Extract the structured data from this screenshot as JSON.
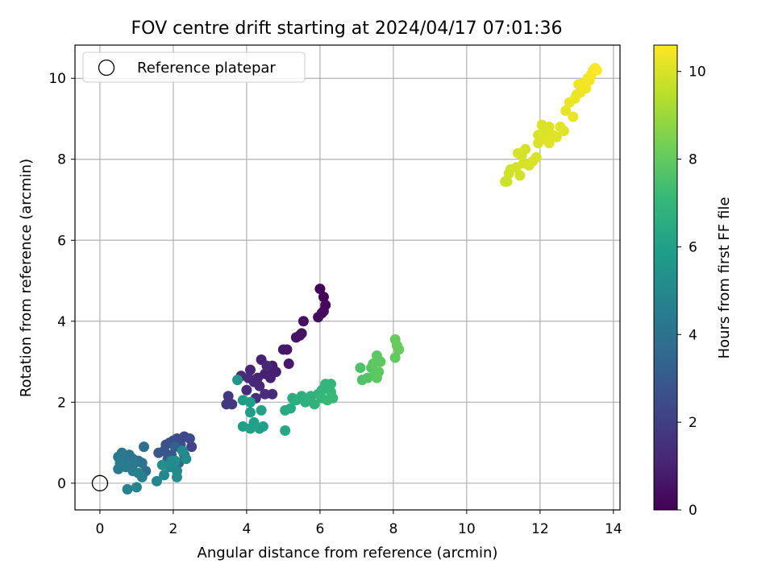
{
  "chart_data": {
    "type": "scatter",
    "title": "FOV centre drift starting at 2024/04/17 07:01:36",
    "xlabel": "Angular distance from reference (arcmin)",
    "ylabel": "Rotation from reference (arcmin)",
    "xlim": [
      -0.68,
      14.18
    ],
    "ylim": [
      -0.66,
      10.82
    ],
    "xticks": [
      0,
      2,
      4,
      6,
      8,
      10,
      12,
      14
    ],
    "yticks": [
      0,
      2,
      4,
      6,
      8,
      10
    ],
    "grid": true,
    "legend": {
      "placement": "top-left",
      "entries": [
        "Reference platepar"
      ]
    },
    "reference_point": {
      "x": 0,
      "y": 0,
      "label": "Reference platepar"
    },
    "colorbar": {
      "label": "Hours from first FF file",
      "colormap": "viridis",
      "range": [
        0,
        10.6
      ],
      "ticks": [
        0,
        2,
        4,
        6,
        8,
        10
      ]
    },
    "points": [
      {
        "x": 6.0,
        "y": 4.8,
        "t": 0.1
      },
      {
        "x": 6.1,
        "y": 4.6,
        "t": 0.15
      },
      {
        "x": 6.15,
        "y": 4.4,
        "t": 0.2
      },
      {
        "x": 6.05,
        "y": 4.2,
        "t": 0.25
      },
      {
        "x": 5.95,
        "y": 4.1,
        "t": 0.3
      },
      {
        "x": 6.1,
        "y": 4.25,
        "t": 0.28
      },
      {
        "x": 5.55,
        "y": 4.0,
        "t": 0.45
      },
      {
        "x": 5.5,
        "y": 3.7,
        "t": 0.5
      },
      {
        "x": 5.35,
        "y": 3.6,
        "t": 0.55
      },
      {
        "x": 5.45,
        "y": 3.65,
        "t": 0.52
      },
      {
        "x": 5.1,
        "y": 3.3,
        "t": 0.65
      },
      {
        "x": 5.0,
        "y": 3.3,
        "t": 0.7
      },
      {
        "x": 5.15,
        "y": 2.95,
        "t": 0.75
      },
      {
        "x": 4.7,
        "y": 2.9,
        "t": 0.85
      },
      {
        "x": 4.6,
        "y": 2.8,
        "t": 0.9
      },
      {
        "x": 4.4,
        "y": 3.05,
        "t": 0.95
      },
      {
        "x": 4.5,
        "y": 2.7,
        "t": 1.0
      },
      {
        "x": 4.3,
        "y": 2.6,
        "t": 1.05
      },
      {
        "x": 4.1,
        "y": 2.8,
        "t": 1.1
      },
      {
        "x": 4.65,
        "y": 2.6,
        "t": 1.0
      },
      {
        "x": 4.8,
        "y": 2.75,
        "t": 0.9
      },
      {
        "x": 4.35,
        "y": 2.4,
        "t": 1.15
      },
      {
        "x": 4.2,
        "y": 2.5,
        "t": 1.2
      },
      {
        "x": 4.0,
        "y": 2.3,
        "t": 1.3
      },
      {
        "x": 3.85,
        "y": 2.65,
        "t": 1.35
      },
      {
        "x": 4.05,
        "y": 2.6,
        "t": 1.3
      },
      {
        "x": 4.25,
        "y": 2.1,
        "t": 1.4
      },
      {
        "x": 4.5,
        "y": 2.2,
        "t": 1.35
      },
      {
        "x": 4.7,
        "y": 2.2,
        "t": 1.3
      },
      {
        "x": 4.55,
        "y": 2.9,
        "t": 1.2
      },
      {
        "x": 3.5,
        "y": 2.15,
        "t": 1.7
      },
      {
        "x": 3.45,
        "y": 1.95,
        "t": 1.8
      },
      {
        "x": 3.6,
        "y": 1.95,
        "t": 1.75
      },
      {
        "x": 2.5,
        "y": 0.9,
        "t": 2.2
      },
      {
        "x": 2.3,
        "y": 1.15,
        "t": 2.3
      },
      {
        "x": 2.1,
        "y": 1.1,
        "t": 2.4
      },
      {
        "x": 2.0,
        "y": 1.05,
        "t": 2.5
      },
      {
        "x": 1.9,
        "y": 1.0,
        "t": 2.6
      },
      {
        "x": 1.8,
        "y": 0.95,
        "t": 2.7
      },
      {
        "x": 1.75,
        "y": 0.8,
        "t": 2.8
      },
      {
        "x": 1.6,
        "y": 0.75,
        "t": 2.9
      },
      {
        "x": 1.85,
        "y": 0.6,
        "t": 3.0
      },
      {
        "x": 2.2,
        "y": 0.95,
        "t": 2.6
      },
      {
        "x": 2.45,
        "y": 1.1,
        "t": 2.4
      },
      {
        "x": 1.95,
        "y": 0.7,
        "t": 2.9
      },
      {
        "x": 2.05,
        "y": 0.9,
        "t": 3.2
      },
      {
        "x": 2.3,
        "y": 0.7,
        "t": 3.4
      },
      {
        "x": 2.15,
        "y": 0.5,
        "t": 3.6
      },
      {
        "x": 1.25,
        "y": 0.3,
        "t": 3.7
      },
      {
        "x": 1.2,
        "y": 0.9,
        "t": 3.8
      },
      {
        "x": 1.05,
        "y": 0.55,
        "t": 3.9
      },
      {
        "x": 1.15,
        "y": 0.5,
        "t": 4.0
      },
      {
        "x": 0.9,
        "y": 0.6,
        "t": 4.1
      },
      {
        "x": 0.8,
        "y": 0.7,
        "t": 4.1
      },
      {
        "x": 0.6,
        "y": 0.75,
        "t": 4.2
      },
      {
        "x": 0.7,
        "y": 0.55,
        "t": 4.2
      },
      {
        "x": 0.5,
        "y": 0.65,
        "t": 4.3
      },
      {
        "x": 0.5,
        "y": 0.35,
        "t": 4.3
      },
      {
        "x": 0.7,
        "y": 0.4,
        "t": 4.4
      },
      {
        "x": 0.85,
        "y": 0.45,
        "t": 4.4
      },
      {
        "x": 0.9,
        "y": 0.3,
        "t": 4.5
      },
      {
        "x": 1.05,
        "y": 0.25,
        "t": 4.6
      },
      {
        "x": 1.15,
        "y": 0.15,
        "t": 4.6
      },
      {
        "x": 0.55,
        "y": 0.5,
        "t": 4.4
      },
      {
        "x": 0.95,
        "y": 0.5,
        "t": 4.3
      },
      {
        "x": 0.75,
        "y": -0.15,
        "t": 4.7
      },
      {
        "x": 1.0,
        "y": -0.1,
        "t": 4.8
      },
      {
        "x": 1.55,
        "y": 0.05,
        "t": 4.8
      },
      {
        "x": 1.75,
        "y": 0.2,
        "t": 4.9
      },
      {
        "x": 1.9,
        "y": 0.4,
        "t": 5.0
      },
      {
        "x": 2.1,
        "y": 0.3,
        "t": 5.0
      },
      {
        "x": 2.1,
        "y": 0.15,
        "t": 5.1
      },
      {
        "x": 2.25,
        "y": 0.8,
        "t": 5.1
      },
      {
        "x": 2.05,
        "y": 0.55,
        "t": 5.2
      },
      {
        "x": 1.95,
        "y": 0.55,
        "t": 5.1
      },
      {
        "x": 2.35,
        "y": 0.6,
        "t": 5.1
      },
      {
        "x": 1.7,
        "y": 0.45,
        "t": 5.2
      },
      {
        "x": 3.75,
        "y": 2.55,
        "t": 5.6
      },
      {
        "x": 3.9,
        "y": 2.05,
        "t": 5.8
      },
      {
        "x": 3.9,
        "y": 1.4,
        "t": 5.9
      },
      {
        "x": 4.1,
        "y": 1.35,
        "t": 6.0
      },
      {
        "x": 4.1,
        "y": 1.75,
        "t": 5.9
      },
      {
        "x": 4.2,
        "y": 1.5,
        "t": 6.0
      },
      {
        "x": 4.35,
        "y": 1.35,
        "t": 6.1
      },
      {
        "x": 4.45,
        "y": 1.4,
        "t": 6.0
      },
      {
        "x": 4.4,
        "y": 1.8,
        "t": 6.1
      },
      {
        "x": 4.1,
        "y": 2.0,
        "t": 5.9
      },
      {
        "x": 5.05,
        "y": 1.3,
        "t": 6.3
      },
      {
        "x": 5.05,
        "y": 1.8,
        "t": 6.4
      },
      {
        "x": 5.2,
        "y": 1.85,
        "t": 6.5
      },
      {
        "x": 5.25,
        "y": 2.1,
        "t": 6.6
      },
      {
        "x": 5.5,
        "y": 2.15,
        "t": 6.7
      },
      {
        "x": 5.6,
        "y": 2.0,
        "t": 6.8
      },
      {
        "x": 5.75,
        "y": 2.15,
        "t": 6.8
      },
      {
        "x": 5.85,
        "y": 1.95,
        "t": 6.9
      },
      {
        "x": 5.95,
        "y": 2.2,
        "t": 6.9
      },
      {
        "x": 6.05,
        "y": 2.1,
        "t": 7.0
      },
      {
        "x": 6.15,
        "y": 2.45,
        "t": 7.0
      },
      {
        "x": 6.3,
        "y": 2.25,
        "t": 7.1
      },
      {
        "x": 6.3,
        "y": 2.45,
        "t": 7.0
      },
      {
        "x": 6.35,
        "y": 2.1,
        "t": 7.1
      },
      {
        "x": 6.2,
        "y": 2.05,
        "t": 7.1
      },
      {
        "x": 6.05,
        "y": 2.3,
        "t": 7.0
      },
      {
        "x": 5.35,
        "y": 2.05,
        "t": 6.6
      },
      {
        "x": 5.7,
        "y": 2.05,
        "t": 6.8
      },
      {
        "x": 7.1,
        "y": 2.85,
        "t": 7.6
      },
      {
        "x": 7.15,
        "y": 2.55,
        "t": 7.6
      },
      {
        "x": 7.3,
        "y": 2.6,
        "t": 7.7
      },
      {
        "x": 7.4,
        "y": 2.85,
        "t": 7.8
      },
      {
        "x": 7.5,
        "y": 2.7,
        "t": 7.8
      },
      {
        "x": 7.6,
        "y": 2.75,
        "t": 7.9
      },
      {
        "x": 7.55,
        "y": 3.15,
        "t": 7.9
      },
      {
        "x": 7.65,
        "y": 3.0,
        "t": 7.9
      },
      {
        "x": 7.45,
        "y": 2.95,
        "t": 7.9
      },
      {
        "x": 7.55,
        "y": 2.6,
        "t": 7.9
      },
      {
        "x": 8.05,
        "y": 3.55,
        "t": 8.1
      },
      {
        "x": 8.1,
        "y": 3.4,
        "t": 8.1
      },
      {
        "x": 8.15,
        "y": 3.3,
        "t": 8.1
      },
      {
        "x": 8.05,
        "y": 3.1,
        "t": 8.0
      },
      {
        "x": 11.05,
        "y": 7.45,
        "t": 9.8
      },
      {
        "x": 11.15,
        "y": 7.65,
        "t": 9.85
      },
      {
        "x": 11.2,
        "y": 7.75,
        "t": 9.85
      },
      {
        "x": 11.35,
        "y": 7.8,
        "t": 9.9
      },
      {
        "x": 11.45,
        "y": 7.6,
        "t": 9.9
      },
      {
        "x": 11.5,
        "y": 8.1,
        "t": 9.95
      },
      {
        "x": 11.55,
        "y": 7.9,
        "t": 9.95
      },
      {
        "x": 11.7,
        "y": 7.85,
        "t": 9.95
      },
      {
        "x": 11.8,
        "y": 7.95,
        "t": 10.0
      },
      {
        "x": 11.9,
        "y": 8.05,
        "t": 10.0
      },
      {
        "x": 11.95,
        "y": 8.4,
        "t": 10.0
      },
      {
        "x": 11.4,
        "y": 8.15,
        "t": 9.95
      },
      {
        "x": 11.1,
        "y": 7.45,
        "t": 9.8
      },
      {
        "x": 11.6,
        "y": 8.25,
        "t": 9.95
      },
      {
        "x": 11.95,
        "y": 8.6,
        "t": 10.05
      },
      {
        "x": 12.1,
        "y": 8.7,
        "t": 10.05
      },
      {
        "x": 12.15,
        "y": 8.5,
        "t": 10.1
      },
      {
        "x": 12.25,
        "y": 8.8,
        "t": 10.1
      },
      {
        "x": 12.35,
        "y": 8.6,
        "t": 10.1
      },
      {
        "x": 12.45,
        "y": 8.55,
        "t": 10.1
      },
      {
        "x": 12.55,
        "y": 8.8,
        "t": 10.15
      },
      {
        "x": 12.65,
        "y": 8.7,
        "t": 10.15
      },
      {
        "x": 12.05,
        "y": 8.85,
        "t": 10.05
      },
      {
        "x": 12.25,
        "y": 8.4,
        "t": 10.1
      },
      {
        "x": 12.7,
        "y": 9.2,
        "t": 10.2
      },
      {
        "x": 12.8,
        "y": 9.4,
        "t": 10.25
      },
      {
        "x": 12.9,
        "y": 9.05,
        "t": 10.25
      },
      {
        "x": 12.95,
        "y": 9.5,
        "t": 10.3
      },
      {
        "x": 13.0,
        "y": 9.6,
        "t": 10.3
      },
      {
        "x": 13.05,
        "y": 9.85,
        "t": 10.35
      },
      {
        "x": 13.1,
        "y": 9.65,
        "t": 10.35
      },
      {
        "x": 13.15,
        "y": 9.8,
        "t": 10.35
      },
      {
        "x": 13.2,
        "y": 9.9,
        "t": 10.4
      },
      {
        "x": 13.25,
        "y": 9.75,
        "t": 10.4
      },
      {
        "x": 13.3,
        "y": 10.0,
        "t": 10.45
      },
      {
        "x": 13.35,
        "y": 9.95,
        "t": 10.45
      },
      {
        "x": 13.4,
        "y": 10.1,
        "t": 10.5
      },
      {
        "x": 13.45,
        "y": 10.2,
        "t": 10.5
      },
      {
        "x": 13.5,
        "y": 10.25,
        "t": 10.55
      },
      {
        "x": 13.55,
        "y": 10.2,
        "t": 10.55
      }
    ]
  }
}
